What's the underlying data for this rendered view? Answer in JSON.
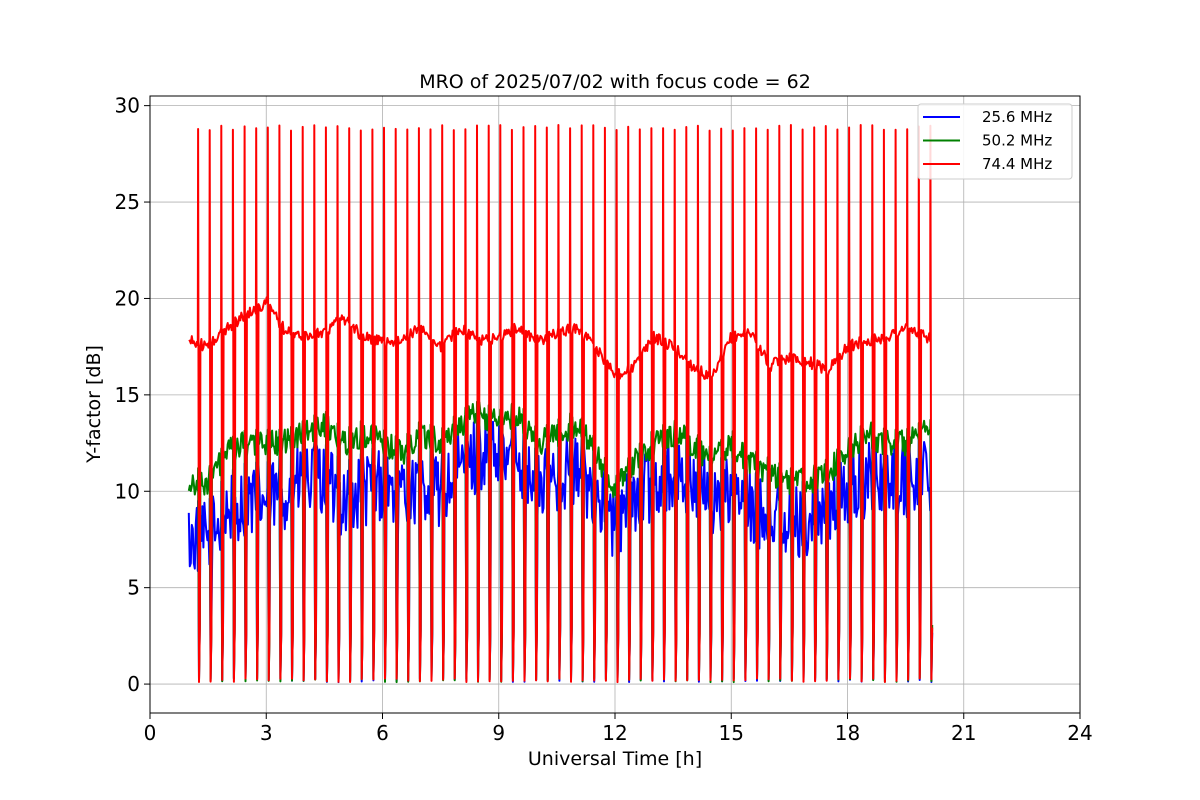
{
  "chart_data": {
    "type": "line",
    "title": "MRO of 2025/07/02 with focus code = 62",
    "xlabel": "Universal Time [h]",
    "ylabel": "Y-factor [dB]",
    "xlim": [
      0,
      24
    ],
    "ylim": [
      -1.5,
      30.5
    ],
    "xticks": [
      "0",
      "3",
      "6",
      "9",
      "12",
      "15",
      "18",
      "21",
      "24"
    ],
    "yticks": [
      "0",
      "5",
      "10",
      "15",
      "20",
      "25",
      "30"
    ],
    "grid": true,
    "legend_position": "top-right",
    "data_window_hours": [
      1.0,
      20.0
    ],
    "calibration_cycle": {
      "period_h": 0.3,
      "pulse_peak_db": 29.0,
      "pulse_trough_db": 0.1,
      "spike_db": 2.5
    },
    "series": [
      {
        "name": "25.6 MHz",
        "color": "#0000ff",
        "baseline": {
          "x": [
            1,
            1.5,
            2,
            2.5,
            3,
            3.5,
            4,
            4.5,
            5,
            5.5,
            6,
            6.5,
            7,
            7.5,
            8,
            8.5,
            9,
            9.5,
            10,
            10.5,
            11,
            11.5,
            12,
            12.5,
            13,
            13.5,
            14,
            14.5,
            15,
            15.5,
            16,
            16.5,
            17,
            17.5,
            18,
            18.5,
            19,
            19.5,
            20
          ],
          "y": [
            7.5,
            7.5,
            9.0,
            9.5,
            9.5,
            10.0,
            10.5,
            10.5,
            9.5,
            10.0,
            10.5,
            9.5,
            10.5,
            10.0,
            11.0,
            12.0,
            11.5,
            12.0,
            10.0,
            11.0,
            11.0,
            10.0,
            8.0,
            9.5,
            10.5,
            11.0,
            10.5,
            9.5,
            10.0,
            9.0,
            9.0,
            8.5,
            8.5,
            9.0,
            10.0,
            10.5,
            11.0,
            10.5,
            11.0
          ]
        },
        "ripple_db": 2.0
      },
      {
        "name": "50.2 MHz",
        "color": "#008000",
        "baseline": {
          "x": [
            1,
            1.5,
            2,
            2.5,
            3,
            3.5,
            4,
            4.5,
            5,
            5.5,
            6,
            6.5,
            7,
            7.5,
            8,
            8.5,
            9,
            9.5,
            10,
            10.5,
            11,
            11.5,
            12,
            12.5,
            13,
            13.5,
            14,
            14.5,
            15,
            15.5,
            16,
            16.5,
            17,
            17.5,
            18,
            18.5,
            19,
            19.5,
            20
          ],
          "y": [
            10.5,
            10.5,
            12.0,
            12.5,
            12.5,
            12.5,
            13.0,
            13.5,
            12.5,
            13.0,
            12.5,
            12.0,
            13.0,
            12.5,
            13.5,
            14.0,
            13.5,
            14.0,
            12.5,
            13.0,
            13.5,
            12.0,
            10.0,
            11.5,
            12.5,
            13.0,
            12.5,
            11.5,
            12.5,
            11.5,
            11.0,
            10.5,
            10.5,
            11.0,
            12.0,
            13.0,
            12.5,
            12.5,
            13.0
          ]
        },
        "ripple_db": 0.7
      },
      {
        "name": "74.4 MHz",
        "color": "#ff0000",
        "baseline": {
          "x": [
            1,
            1.5,
            2,
            2.5,
            3,
            3.5,
            4,
            4.5,
            5,
            5.5,
            6,
            6.5,
            7,
            7.5,
            8,
            8.5,
            9,
            9.5,
            10,
            10.5,
            11,
            11.5,
            12,
            12.5,
            13,
            13.5,
            14,
            14.5,
            15,
            15.5,
            16,
            16.5,
            17,
            17.5,
            18,
            18.5,
            19,
            19.5,
            20
          ],
          "y": [
            17.8,
            17.5,
            18.5,
            19.2,
            19.8,
            18.3,
            18.0,
            18.3,
            19.0,
            18.0,
            17.8,
            17.8,
            18.5,
            17.5,
            18.5,
            17.8,
            18.0,
            18.5,
            17.8,
            18.2,
            18.5,
            17.5,
            16.0,
            16.5,
            18.0,
            17.5,
            16.5,
            15.8,
            18.0,
            18.3,
            16.5,
            17.0,
            16.7,
            16.3,
            17.5,
            17.8,
            18.0,
            18.5,
            18.0
          ]
        },
        "ripple_db": 0.3
      }
    ]
  }
}
